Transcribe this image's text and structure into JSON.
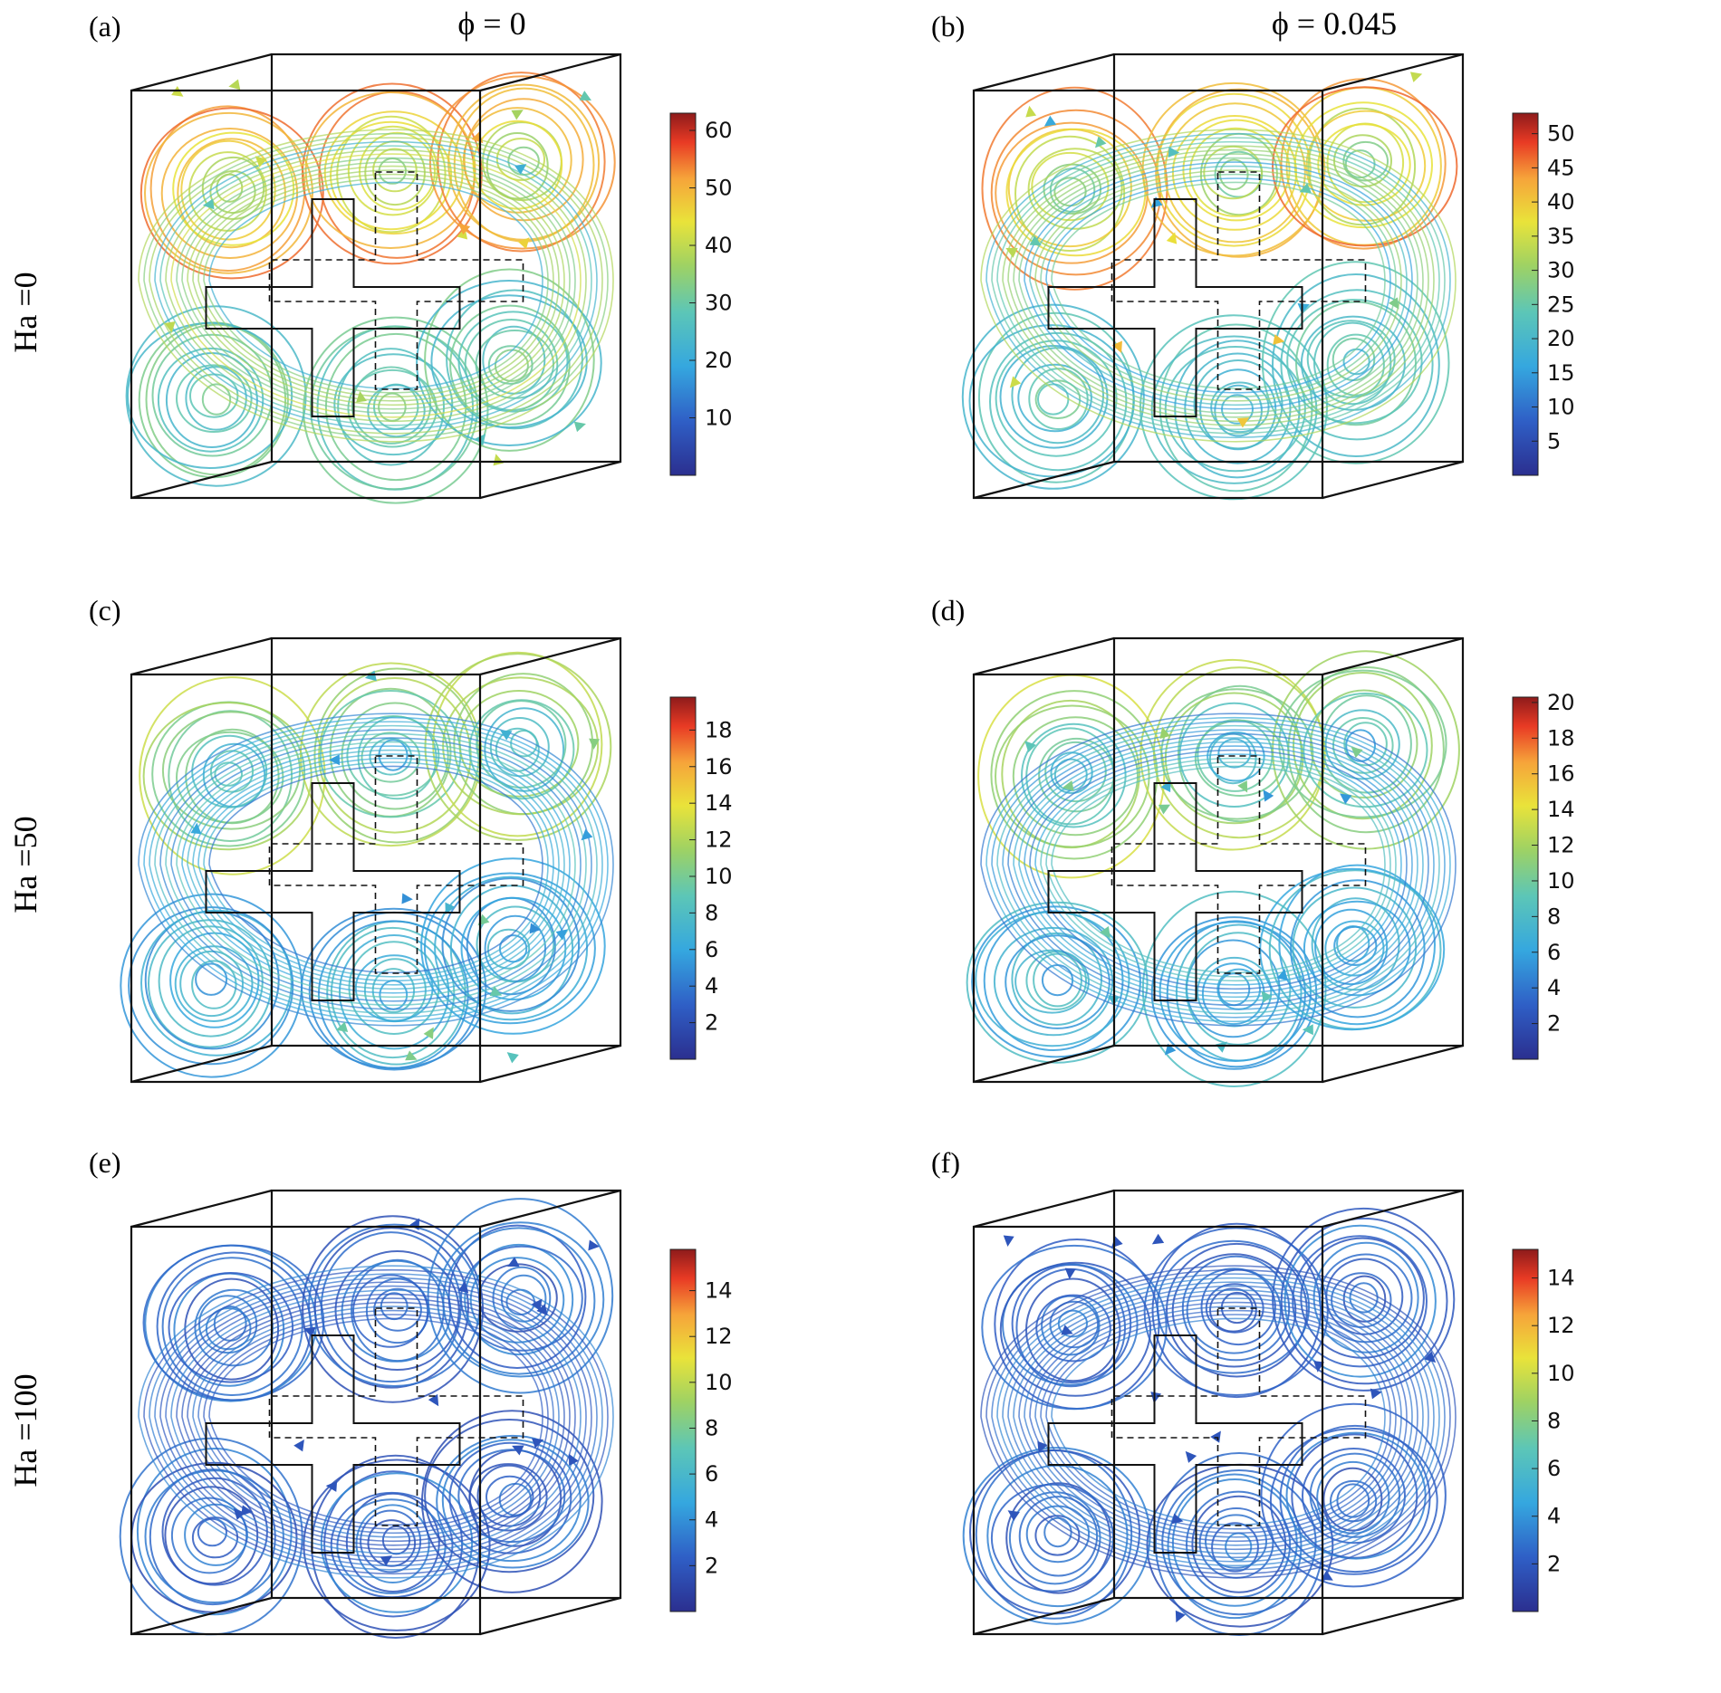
{
  "figure": {
    "column_headers": [
      "ϕ = 0",
      "ϕ = 0.045"
    ],
    "row_labels": [
      "Ha =0",
      "Ha =50",
      "Ha =100"
    ],
    "panels": [
      {
        "label": "(a)",
        "ha": "Ha =0",
        "phi": "ϕ = 0",
        "colorbar": {
          "min": 0,
          "max": 63,
          "ticks": [
            "10",
            "20",
            "30",
            "40",
            "50",
            "60"
          ]
        },
        "heat": 0.85
      },
      {
        "label": "(b)",
        "ha": "Ha =0",
        "phi": "ϕ = 0.045",
        "colorbar": {
          "min": 0,
          "max": 53,
          "ticks": [
            "5",
            "10",
            "15",
            "20",
            "25",
            "30",
            "35",
            "40",
            "45",
            "50"
          ]
        },
        "heat": 0.8
      },
      {
        "label": "(c)",
        "ha": "Ha =50",
        "phi": "ϕ = 0",
        "colorbar": {
          "min": 0,
          "max": 19.8,
          "ticks": [
            "2",
            "4",
            "6",
            "8",
            "10",
            "12",
            "14",
            "16",
            "18"
          ]
        },
        "heat": 0.55
      },
      {
        "label": "(d)",
        "ha": "Ha =50",
        "phi": "ϕ = 0.045",
        "colorbar": {
          "min": 0,
          "max": 20.3,
          "ticks": [
            "2",
            "4",
            "6",
            "8",
            "10",
            "12",
            "14",
            "16",
            "18",
            "20"
          ]
        },
        "heat": 0.55
      },
      {
        "label": "(e)",
        "ha": "Ha =100",
        "phi": "ϕ = 0",
        "colorbar": {
          "min": 0,
          "max": 15.8,
          "ticks": [
            "2",
            "4",
            "6",
            "8",
            "10",
            "12",
            "14"
          ]
        },
        "heat": 0.12
      },
      {
        "label": "(f)",
        "ha": "Ha =100",
        "phi": "ϕ = 0.045",
        "colorbar": {
          "min": 0,
          "max": 15.2,
          "ticks": [
            "2",
            "4",
            "6",
            "8",
            "10",
            "12",
            "14"
          ]
        },
        "heat": 0.12
      }
    ],
    "colormap": [
      "#2b2f8f",
      "#2f5fc6",
      "#35a7df",
      "#5cc6b7",
      "#9fd263",
      "#e9e33a",
      "#f6a43a",
      "#e83a24",
      "#8e1b1b"
    ]
  }
}
